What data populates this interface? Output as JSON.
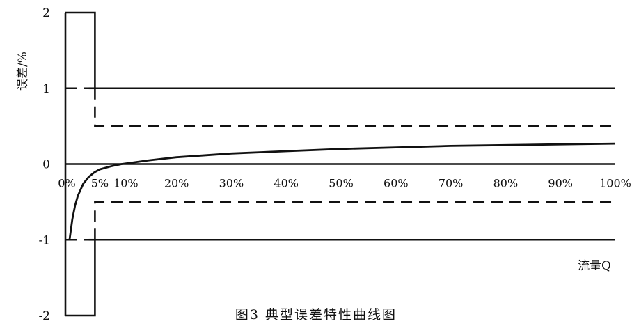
{
  "chart_data": {
    "type": "line",
    "caption": "图3 典型误差特性曲线图",
    "ylabel": "误差/%",
    "xlabel": "流量Q",
    "ylim": [
      -2,
      2
    ],
    "xlim": [
      0,
      100
    ],
    "y_ticks": [
      "2",
      "1",
      "0",
      "-1",
      "-2"
    ],
    "y_tick_values": [
      2,
      1,
      0,
      -1,
      -2
    ],
    "x_ticks": [
      "0%",
      "5%",
      "10%",
      "20%",
      "30%",
      "40%",
      "50%",
      "60%",
      "70%",
      "80%",
      "90%",
      "100%"
    ],
    "x_tick_values": [
      0,
      5,
      10,
      20,
      30,
      40,
      50,
      60,
      70,
      80,
      90,
      100
    ],
    "limits": {
      "low_flow_limit": 2,
      "low_flow_range": [
        0,
        5
      ],
      "upper_limit": 1,
      "lower_limit": -1,
      "inner_upper_limit": 0.5,
      "inner_lower_limit": -0.5
    },
    "series": [
      {
        "x": [
          0.5,
          1,
          1.5,
          2,
          3,
          4,
          5,
          6,
          8,
          10,
          15,
          20,
          30,
          40,
          50,
          60,
          70,
          80,
          90,
          100
        ],
        "y": [
          -1.0,
          -0.73,
          -0.55,
          -0.42,
          -0.26,
          -0.17,
          -0.11,
          -0.07,
          -0.03,
          0.0,
          0.05,
          0.09,
          0.14,
          0.17,
          0.2,
          0.22,
          0.24,
          0.25,
          0.26,
          0.27
        ]
      }
    ]
  }
}
